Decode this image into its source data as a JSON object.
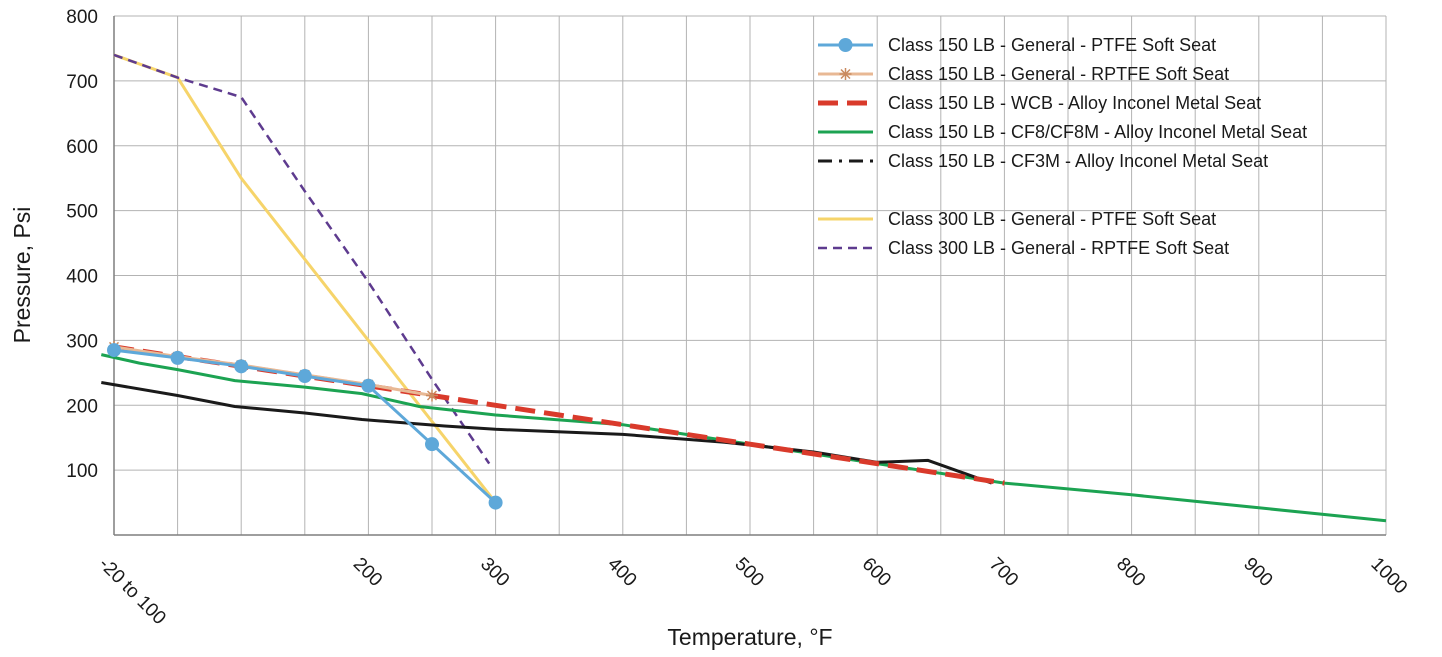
{
  "chart_data": {
    "type": "line",
    "xlabel": "Temperature, °F",
    "ylabel": "Pressure, Psi",
    "xlim": [
      0,
      1000
    ],
    "ylim": [
      0,
      800
    ],
    "x_ticks": [
      {
        "value": 0,
        "label": "-20 to 100"
      },
      {
        "value": 200,
        "label": "200"
      },
      {
        "value": 300,
        "label": "300"
      },
      {
        "value": 400,
        "label": "400"
      },
      {
        "value": 500,
        "label": "500"
      },
      {
        "value": 600,
        "label": "600"
      },
      {
        "value": 700,
        "label": "700"
      },
      {
        "value": 800,
        "label": "800"
      },
      {
        "value": 900,
        "label": "900"
      },
      {
        "value": 1000,
        "label": "1000"
      }
    ],
    "y_ticks": [
      {
        "value": 100,
        "label": "100"
      },
      {
        "value": 200,
        "label": "200"
      },
      {
        "value": 300,
        "label": "300"
      },
      {
        "value": 400,
        "label": "400"
      },
      {
        "value": 500,
        "label": "500"
      },
      {
        "value": 600,
        "label": "600"
      },
      {
        "value": 700,
        "label": "700"
      },
      {
        "value": 800,
        "label": "800"
      }
    ],
    "grid": true,
    "legend_position": "top-right",
    "series": [
      {
        "name": "Class 150 LB - General - PTFE Soft Seat",
        "color": "#5ea8d9",
        "style": "solid-marker-circle",
        "points": [
          [
            0,
            285
          ],
          [
            50,
            273
          ],
          [
            100,
            260
          ],
          [
            150,
            245
          ],
          [
            200,
            230
          ],
          [
            250,
            140
          ],
          [
            300,
            50
          ]
        ]
      },
      {
        "name": "Class 150 LB - General - RPTFE Soft Seat",
        "color": "#e8b894",
        "style": "solid-marker-star",
        "points": [
          [
            0,
            290
          ],
          [
            50,
            275
          ],
          [
            100,
            262
          ],
          [
            150,
            247
          ],
          [
            200,
            232
          ],
          [
            250,
            215
          ]
        ]
      },
      {
        "name": "Class 150 LB - WCB - Alloy Inconel Metal Seat",
        "color": "#d93a2b",
        "style": "thick-dash",
        "points": [
          [
            0,
            290
          ],
          [
            50,
            275
          ],
          [
            100,
            260
          ],
          [
            150,
            245
          ],
          [
            200,
            230
          ],
          [
            250,
            215
          ],
          [
            300,
            200
          ],
          [
            350,
            185
          ],
          [
            400,
            170
          ],
          [
            450,
            155
          ],
          [
            500,
            140
          ],
          [
            550,
            125
          ],
          [
            600,
            110
          ],
          [
            650,
            95
          ],
          [
            700,
            80
          ]
        ]
      },
      {
        "name": "Class 150 LB - CF8/CF8M - Alloy Inconel Metal Seat",
        "color": "#1ca352",
        "style": "solid",
        "points": [
          [
            -10,
            278
          ],
          [
            20,
            265
          ],
          [
            50,
            255
          ],
          [
            95,
            238
          ],
          [
            150,
            228
          ],
          [
            195,
            218
          ],
          [
            240,
            198
          ],
          [
            300,
            185
          ],
          [
            400,
            170
          ],
          [
            500,
            140
          ],
          [
            600,
            110
          ],
          [
            700,
            80
          ],
          [
            800,
            62
          ],
          [
            900,
            42
          ],
          [
            1000,
            22
          ]
        ]
      },
      {
        "name": "Class 150 LB - CF3M - Alloy Inconel Metal Seat",
        "color": "#1a1a1a",
        "style": "dash-dot",
        "points": [
          [
            -10,
            235
          ],
          [
            50,
            215
          ],
          [
            95,
            198
          ],
          [
            150,
            188
          ],
          [
            195,
            178
          ],
          [
            260,
            168
          ],
          [
            300,
            163
          ],
          [
            400,
            155
          ],
          [
            480,
            143
          ],
          [
            550,
            128
          ],
          [
            600,
            112
          ],
          [
            640,
            115
          ],
          [
            690,
            80
          ]
        ]
      },
      {
        "name": "Class 300 LB - General - PTFE Soft Seat",
        "color": "#f6d46a",
        "style": "solid",
        "points": [
          [
            0,
            740
          ],
          [
            50,
            705
          ],
          [
            100,
            550
          ],
          [
            200,
            300
          ],
          [
            300,
            50
          ]
        ]
      },
      {
        "name": "Class 300 LB - General - RPTFE Soft Seat",
        "color": "#5e3b8f",
        "style": "dashed",
        "points": [
          [
            0,
            740
          ],
          [
            50,
            705
          ],
          [
            100,
            675
          ],
          [
            150,
            530
          ],
          [
            200,
            390
          ],
          [
            250,
            240
          ],
          [
            295,
            110
          ]
        ]
      }
    ]
  }
}
